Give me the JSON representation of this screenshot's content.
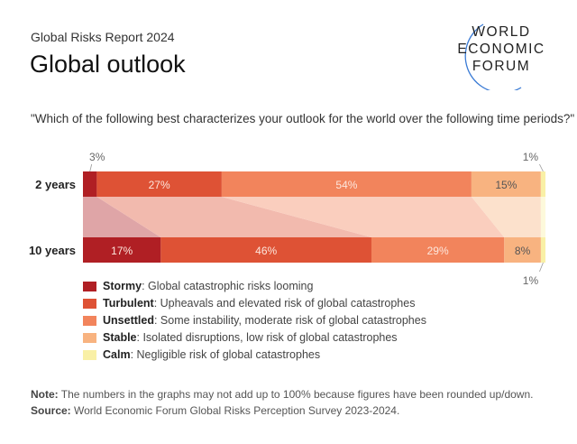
{
  "header": {
    "kicker": "Global Risks Report 2024",
    "title": "Global outlook"
  },
  "logo": {
    "lines": [
      "WORLD",
      "ECONOMIC",
      "FORUM"
    ],
    "arc_color": "#3a7bd5"
  },
  "question": "\"Which of the following best characterizes your outlook for the world over the following time periods?\"",
  "chart_data": {
    "type": "bar",
    "orientation": "horizontal-stacked",
    "categories": [
      "2 years",
      "10 years"
    ],
    "series": [
      {
        "name": "Stormy",
        "color": "#b01f24",
        "values": [
          3,
          17
        ],
        "labels": [
          "3%",
          "17%"
        ]
      },
      {
        "name": "Turbulent",
        "color": "#de5235",
        "values": [
          27,
          46
        ],
        "labels": [
          "27%",
          "46%"
        ]
      },
      {
        "name": "Unsettled",
        "color": "#f2845c",
        "values": [
          54,
          29
        ],
        "labels": [
          "54%",
          "29%"
        ]
      },
      {
        "name": "Stable",
        "color": "#f8b380",
        "values": [
          15,
          8
        ],
        "labels": [
          "15%",
          "8%"
        ]
      },
      {
        "name": "Calm",
        "color": "#f9f0a6",
        "values": [
          1,
          1
        ],
        "labels": [
          "1%",
          "1%"
        ]
      }
    ]
  },
  "legend": [
    {
      "name": "Stormy",
      "desc": ": Global catastrophic risks looming",
      "color": "#b01f24"
    },
    {
      "name": "Turbulent",
      "desc": ": Upheavals and elevated risk of global catastrophes",
      "color": "#de5235"
    },
    {
      "name": "Unsettled",
      "desc": ": Some instability, moderate risk of global catastrophes",
      "color": "#f2845c"
    },
    {
      "name": "Stable",
      "desc": ": Isolated disruptions, low risk of global catastrophes",
      "color": "#f8b380"
    },
    {
      "name": "Calm",
      "desc": ": Negligible risk of global catastrophes",
      "color": "#f9f0a6"
    }
  ],
  "footer": {
    "note_label": "Note:",
    "note": " The numbers in the graphs may not add up to 100% because figures have been rounded up/down.",
    "source_label": "Source:",
    "source": " World Economic Forum Global Risks Perception Survey 2023-2024."
  }
}
